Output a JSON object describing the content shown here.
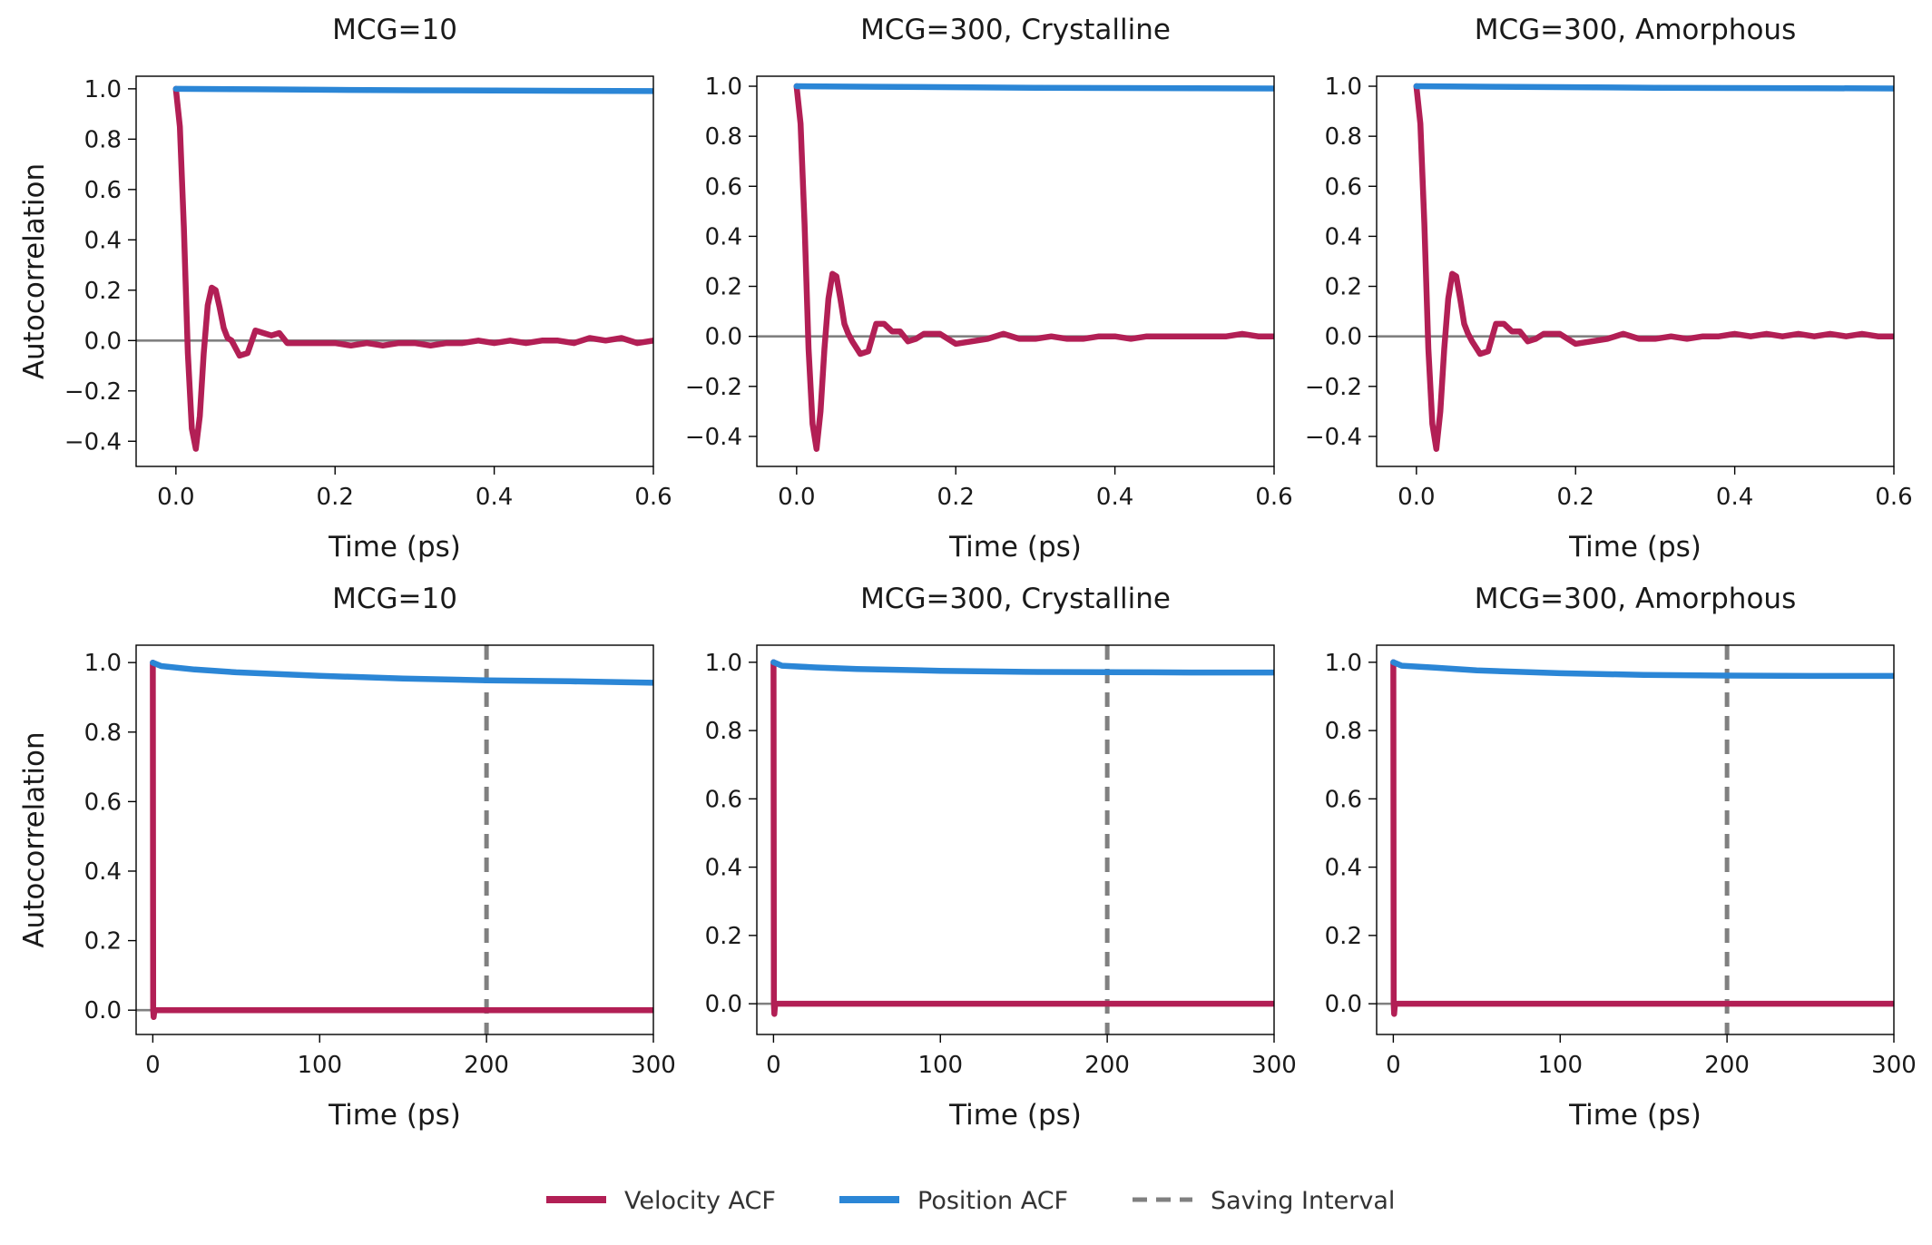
{
  "legend": {
    "velocity": "Velocity ACF",
    "position": "Position ACF",
    "saving": "Saving Interval"
  },
  "colors": {
    "velocity": "#b21f55",
    "position": "#2b86d6",
    "saving": "#808080",
    "zero": "#808080"
  },
  "chart_data": [
    {
      "type": "line",
      "title": "MCG=10",
      "xlabel": "Time (ps)",
      "ylabel": "Autocorrelation",
      "xlim": [
        -0.05,
        0.6
      ],
      "ylim": [
        -0.5,
        1.05
      ],
      "xticks": [
        0.0,
        0.2,
        0.4,
        0.6
      ],
      "xtick_labels": [
        "0.0",
        "0.2",
        "0.4",
        "0.6"
      ],
      "yticks": [
        -0.4,
        -0.2,
        0.0,
        0.2,
        0.4,
        0.6,
        0.8,
        1.0
      ],
      "ytick_labels": [
        "−0.4",
        "−0.2",
        "0.0",
        "0.2",
        "0.4",
        "0.6",
        "0.8",
        "1.0"
      ],
      "series": [
        {
          "name": "Velocity ACF",
          "x": [
            0,
            0.005,
            0.01,
            0.015,
            0.02,
            0.025,
            0.03,
            0.035,
            0.04,
            0.045,
            0.05,
            0.055,
            0.06,
            0.065,
            0.07,
            0.08,
            0.09,
            0.1,
            0.11,
            0.12,
            0.13,
            0.14,
            0.15,
            0.16,
            0.18,
            0.2,
            0.22,
            0.24,
            0.26,
            0.28,
            0.3,
            0.32,
            0.34,
            0.36,
            0.38,
            0.4,
            0.42,
            0.44,
            0.46,
            0.48,
            0.5,
            0.52,
            0.54,
            0.56,
            0.58,
            0.6
          ],
          "values": [
            1.0,
            0.85,
            0.45,
            -0.05,
            -0.35,
            -0.43,
            -0.3,
            -0.05,
            0.14,
            0.21,
            0.2,
            0.13,
            0.05,
            0.01,
            0.0,
            -0.06,
            -0.05,
            0.04,
            0.03,
            0.02,
            0.03,
            -0.01,
            -0.01,
            -0.01,
            -0.01,
            -0.01,
            -0.02,
            -0.01,
            -0.02,
            -0.01,
            -0.01,
            -0.02,
            -0.01,
            -0.01,
            0.0,
            -0.01,
            0.0,
            -0.01,
            0.0,
            0.0,
            -0.01,
            0.01,
            0.0,
            0.01,
            -0.01,
            0.0
          ]
        },
        {
          "name": "Position ACF",
          "x": [
            0,
            0.1,
            0.2,
            0.3,
            0.4,
            0.5,
            0.6
          ],
          "values": [
            1.0,
            0.998,
            0.996,
            0.994,
            0.993,
            0.992,
            0.991
          ]
        }
      ]
    },
    {
      "type": "line",
      "title": "MCG=300, Crystalline",
      "xlabel": "Time (ps)",
      "ylabel": "",
      "xlim": [
        -0.05,
        0.6
      ],
      "ylim": [
        -0.52,
        1.04
      ],
      "xticks": [
        0.0,
        0.2,
        0.4,
        0.6
      ],
      "xtick_labels": [
        "0.0",
        "0.2",
        "0.4",
        "0.6"
      ],
      "yticks": [
        -0.4,
        -0.2,
        0.0,
        0.2,
        0.4,
        0.6,
        0.8,
        1.0
      ],
      "ytick_labels": [
        "−0.4",
        "−0.2",
        "0.0",
        "0.2",
        "0.4",
        "0.6",
        "0.8",
        "1.0"
      ],
      "series": [
        {
          "name": "Velocity ACF",
          "x": [
            0,
            0.005,
            0.01,
            0.015,
            0.02,
            0.025,
            0.03,
            0.035,
            0.04,
            0.045,
            0.05,
            0.055,
            0.06,
            0.065,
            0.07,
            0.08,
            0.09,
            0.1,
            0.11,
            0.12,
            0.13,
            0.14,
            0.15,
            0.16,
            0.18,
            0.2,
            0.22,
            0.24,
            0.26,
            0.28,
            0.3,
            0.32,
            0.34,
            0.36,
            0.38,
            0.4,
            0.42,
            0.44,
            0.46,
            0.48,
            0.5,
            0.52,
            0.54,
            0.56,
            0.58,
            0.6
          ],
          "values": [
            1.0,
            0.85,
            0.45,
            -0.05,
            -0.35,
            -0.45,
            -0.3,
            -0.05,
            0.15,
            0.25,
            0.24,
            0.15,
            0.05,
            0.01,
            -0.02,
            -0.07,
            -0.06,
            0.05,
            0.05,
            0.02,
            0.02,
            -0.02,
            -0.01,
            0.01,
            0.01,
            -0.03,
            -0.02,
            -0.01,
            0.01,
            -0.01,
            -0.01,
            0.0,
            -0.01,
            -0.01,
            0.0,
            0.0,
            -0.01,
            0.0,
            0.0,
            0.0,
            0.0,
            0.0,
            0.0,
            0.01,
            0.0,
            0.0
          ]
        },
        {
          "name": "Position ACF",
          "x": [
            0,
            0.1,
            0.2,
            0.3,
            0.4,
            0.5,
            0.6
          ],
          "values": [
            1.0,
            0.998,
            0.996,
            0.994,
            0.993,
            0.992,
            0.991
          ]
        }
      ]
    },
    {
      "type": "line",
      "title": "MCG=300, Amorphous",
      "xlabel": "Time (ps)",
      "ylabel": "",
      "xlim": [
        -0.05,
        0.6
      ],
      "ylim": [
        -0.52,
        1.04
      ],
      "xticks": [
        0.0,
        0.2,
        0.4,
        0.6
      ],
      "xtick_labels": [
        "0.0",
        "0.2",
        "0.4",
        "0.6"
      ],
      "yticks": [
        -0.4,
        -0.2,
        0.0,
        0.2,
        0.4,
        0.6,
        0.8,
        1.0
      ],
      "ytick_labels": [
        "−0.4",
        "−0.2",
        "0.0",
        "0.2",
        "0.4",
        "0.6",
        "0.8",
        "1.0"
      ],
      "series": [
        {
          "name": "Velocity ACF",
          "x": [
            0,
            0.005,
            0.01,
            0.015,
            0.02,
            0.025,
            0.03,
            0.035,
            0.04,
            0.045,
            0.05,
            0.055,
            0.06,
            0.065,
            0.07,
            0.08,
            0.09,
            0.1,
            0.11,
            0.12,
            0.13,
            0.14,
            0.15,
            0.16,
            0.18,
            0.2,
            0.22,
            0.24,
            0.26,
            0.28,
            0.3,
            0.32,
            0.34,
            0.36,
            0.38,
            0.4,
            0.42,
            0.44,
            0.46,
            0.48,
            0.5,
            0.52,
            0.54,
            0.56,
            0.58,
            0.6
          ],
          "values": [
            1.0,
            0.85,
            0.45,
            -0.05,
            -0.35,
            -0.45,
            -0.3,
            -0.05,
            0.15,
            0.25,
            0.24,
            0.15,
            0.05,
            0.01,
            -0.02,
            -0.07,
            -0.06,
            0.05,
            0.05,
            0.02,
            0.02,
            -0.02,
            -0.01,
            0.01,
            0.01,
            -0.03,
            -0.02,
            -0.01,
            0.01,
            -0.01,
            -0.01,
            0.0,
            -0.01,
            0.0,
            0.0,
            0.01,
            0.0,
            0.01,
            0.0,
            0.01,
            0.0,
            0.01,
            0.0,
            0.01,
            0.0,
            0.0
          ]
        },
        {
          "name": "Position ACF",
          "x": [
            0,
            0.1,
            0.2,
            0.3,
            0.4,
            0.5,
            0.6
          ],
          "values": [
            1.0,
            0.998,
            0.996,
            0.994,
            0.993,
            0.992,
            0.991
          ]
        }
      ]
    },
    {
      "type": "line",
      "title": "MCG=10",
      "xlabel": "Time (ps)",
      "ylabel": "Autocorrelation",
      "xlim": [
        -10,
        300
      ],
      "ylim": [
        -0.07,
        1.05
      ],
      "xticks": [
        0,
        100,
        200,
        300
      ],
      "xtick_labels": [
        "0",
        "100",
        "200",
        "300"
      ],
      "yticks": [
        0.0,
        0.2,
        0.4,
        0.6,
        0.8,
        1.0
      ],
      "ytick_labels": [
        "0.0",
        "0.2",
        "0.4",
        "0.6",
        "0.8",
        "1.0"
      ],
      "saving_interval": 200,
      "series": [
        {
          "name": "Velocity ACF",
          "x": [
            0,
            0.2,
            0.5,
            1,
            300
          ],
          "values": [
            1.0,
            0.0,
            -0.02,
            0.0,
            0.0
          ]
        },
        {
          "name": "Position ACF",
          "x": [
            0,
            5,
            25,
            50,
            100,
            150,
            200,
            250,
            300
          ],
          "values": [
            1.0,
            0.99,
            0.98,
            0.972,
            0.962,
            0.954,
            0.949,
            0.946,
            0.942
          ]
        }
      ]
    },
    {
      "type": "line",
      "title": "MCG=300, Crystalline",
      "xlabel": "Time (ps)",
      "ylabel": "",
      "xlim": [
        -10,
        300
      ],
      "ylim": [
        -0.09,
        1.05
      ],
      "xticks": [
        0,
        100,
        200,
        300
      ],
      "xtick_labels": [
        "0",
        "100",
        "200",
        "300"
      ],
      "yticks": [
        0.0,
        0.2,
        0.4,
        0.6,
        0.8,
        1.0
      ],
      "ytick_labels": [
        "0.0",
        "0.2",
        "0.4",
        "0.6",
        "0.8",
        "1.0"
      ],
      "saving_interval": 200,
      "series": [
        {
          "name": "Velocity ACF",
          "x": [
            0,
            0.2,
            0.5,
            1,
            300
          ],
          "values": [
            1.0,
            0.0,
            -0.03,
            0.0,
            0.0
          ]
        },
        {
          "name": "Position ACF",
          "x": [
            0,
            5,
            25,
            50,
            100,
            150,
            200,
            250,
            300
          ],
          "values": [
            1.0,
            0.99,
            0.985,
            0.98,
            0.975,
            0.972,
            0.971,
            0.97,
            0.97
          ]
        }
      ]
    },
    {
      "type": "line",
      "title": "MCG=300, Amorphous",
      "xlabel": "Time (ps)",
      "ylabel": "",
      "xlim": [
        -10,
        300
      ],
      "ylim": [
        -0.09,
        1.05
      ],
      "xticks": [
        0,
        100,
        200,
        300
      ],
      "xtick_labels": [
        "0",
        "100",
        "200",
        "300"
      ],
      "yticks": [
        0.0,
        0.2,
        0.4,
        0.6,
        0.8,
        1.0
      ],
      "ytick_labels": [
        "0.0",
        "0.2",
        "0.4",
        "0.6",
        "0.8",
        "1.0"
      ],
      "saving_interval": 200,
      "series": [
        {
          "name": "Velocity ACF",
          "x": [
            0,
            0.2,
            0.5,
            1,
            300
          ],
          "values": [
            1.0,
            0.0,
            -0.03,
            0.0,
            0.0
          ]
        },
        {
          "name": "Position ACF",
          "x": [
            0,
            5,
            25,
            50,
            100,
            150,
            200,
            250,
            300
          ],
          "values": [
            1.0,
            0.99,
            0.984,
            0.976,
            0.968,
            0.963,
            0.961,
            0.96,
            0.96
          ]
        }
      ]
    }
  ]
}
